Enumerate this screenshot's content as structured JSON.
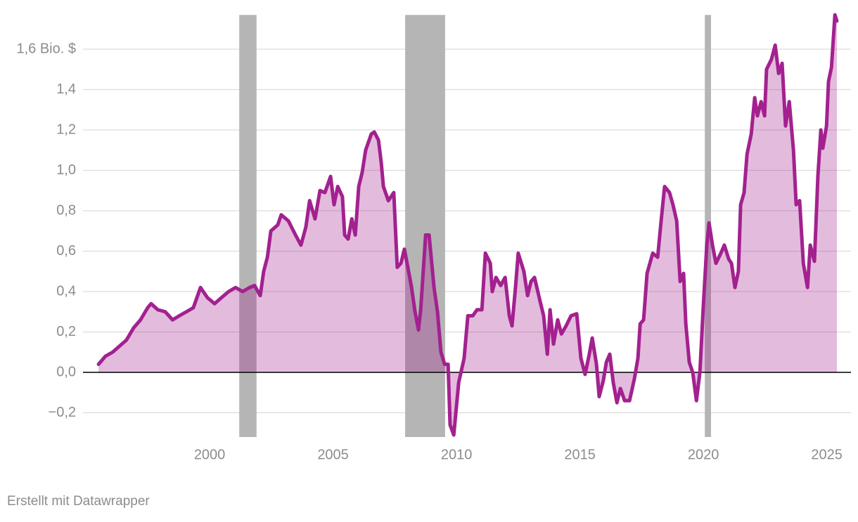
{
  "chart_data": {
    "type": "area",
    "footer": "Erstellt mit Datawrapper",
    "line_color": "#a3218f",
    "fill_color": "#a3218f",
    "shade_color": "#b5b5b5",
    "shaded_periods": [
      [
        2001.2,
        2001.9
      ],
      [
        2007.92,
        2009.54
      ],
      [
        2020.06,
        2020.31
      ]
    ],
    "xlim": [
      1994.87,
      2025.98
    ],
    "xticks": [
      2000,
      2005,
      2010,
      2015,
      2020,
      2025
    ],
    "ylim": [
      -0.32,
      1.78
    ],
    "yticks": [
      {
        "value": -0.2,
        "label": "−0,2"
      },
      {
        "value": 0,
        "label": "0,0"
      },
      {
        "value": 0.2,
        "label": "0,2"
      },
      {
        "value": 0.4,
        "label": "0,4"
      },
      {
        "value": 0.6,
        "label": "0,6"
      },
      {
        "value": 0.8,
        "label": "0,8"
      },
      {
        "value": 1.0,
        "label": "1,0"
      },
      {
        "value": 1.2,
        "label": "1,2"
      },
      {
        "value": 1.4,
        "label": "1,4"
      },
      {
        "value": 1.6,
        "label": "1,6 Bio. $"
      }
    ],
    "grid": true,
    "x": [
      1995.5,
      1995.78,
      1996.07,
      1996.35,
      1996.63,
      1996.92,
      1997.2,
      1997.49,
      1997.63,
      1997.9,
      1998.2,
      1998.5,
      1998.77,
      1999.06,
      1999.34,
      1999.63,
      1999.91,
      2000.2,
      2000.48,
      2000.77,
      2001.05,
      2001.34,
      2001.62,
      2001.82,
      2002.05,
      2002.19,
      2002.34,
      2002.48,
      2002.76,
      2002.9,
      2003.19,
      2003.48,
      2003.7,
      2003.9,
      2004.05,
      2004.27,
      2004.47,
      2004.67,
      2004.9,
      2005.04,
      2005.19,
      2005.38,
      2005.47,
      2005.61,
      2005.76,
      2005.9,
      2006.04,
      2006.18,
      2006.32,
      2006.55,
      2006.67,
      2006.84,
      2006.95,
      2007.04,
      2007.24,
      2007.46,
      2007.6,
      2007.75,
      2007.89,
      2008.03,
      2008.18,
      2008.32,
      2008.46,
      2008.55,
      2008.75,
      2008.89,
      2009.09,
      2009.23,
      2009.37,
      2009.52,
      2009.66,
      2009.74,
      2009.89,
      2010.09,
      2010.31,
      2010.46,
      2010.66,
      2010.83,
      2011.03,
      2011.17,
      2011.37,
      2011.45,
      2011.6,
      2011.79,
      2011.97,
      2012.14,
      2012.25,
      2012.39,
      2012.5,
      2012.73,
      2012.88,
      2013.02,
      2013.16,
      2013.39,
      2013.53,
      2013.68,
      2013.79,
      2013.93,
      2014.1,
      2014.25,
      2014.44,
      2014.64,
      2014.87,
      2015.04,
      2015.21,
      2015.38,
      2015.5,
      2015.67,
      2015.78,
      2015.95,
      2016.07,
      2016.21,
      2016.35,
      2016.5,
      2016.64,
      2016.81,
      2017.01,
      2017.21,
      2017.35,
      2017.44,
      2017.58,
      2017.72,
      2017.95,
      2018.15,
      2018.29,
      2018.43,
      2018.63,
      2018.77,
      2018.92,
      2019.06,
      2019.2,
      2019.29,
      2019.43,
      2019.57,
      2019.72,
      2019.86,
      2020.0,
      2020.14,
      2020.23,
      2020.37,
      2020.51,
      2020.71,
      2020.85,
      2021.03,
      2021.14,
      2021.28,
      2021.42,
      2021.51,
      2021.65,
      2021.77,
      2021.94,
      2022.08,
      2022.19,
      2022.34,
      2022.48,
      2022.56,
      2022.76,
      2022.91,
      2023.05,
      2023.19,
      2023.33,
      2023.48,
      2023.65,
      2023.76,
      2023.9,
      2024.05,
      2024.22,
      2024.33,
      2024.5,
      2024.64,
      2024.76,
      2024.84,
      2024.99,
      2025.07,
      2025.19,
      2025.33,
      2025.41
    ],
    "values": [
      0.04,
      0.08,
      0.1,
      0.13,
      0.16,
      0.22,
      0.26,
      0.32,
      0.34,
      0.31,
      0.3,
      0.26,
      0.28,
      0.3,
      0.32,
      0.42,
      0.37,
      0.34,
      0.37,
      0.4,
      0.42,
      0.4,
      0.42,
      0.43,
      0.38,
      0.5,
      0.57,
      0.7,
      0.73,
      0.78,
      0.75,
      0.68,
      0.63,
      0.72,
      0.85,
      0.76,
      0.9,
      0.89,
      0.97,
      0.83,
      0.92,
      0.87,
      0.68,
      0.66,
      0.76,
      0.68,
      0.92,
      0.99,
      1.1,
      1.18,
      1.19,
      1.15,
      1.04,
      0.92,
      0.85,
      0.89,
      0.52,
      0.54,
      0.61,
      0.52,
      0.42,
      0.3,
      0.21,
      0.31,
      0.68,
      0.68,
      0.42,
      0.3,
      0.1,
      0.04,
      0.04,
      -0.26,
      -0.31,
      -0.05,
      0.07,
      0.28,
      0.28,
      0.31,
      0.31,
      0.59,
      0.54,
      0.4,
      0.47,
      0.43,
      0.47,
      0.28,
      0.23,
      0.42,
      0.59,
      0.5,
      0.38,
      0.45,
      0.47,
      0.35,
      0.28,
      0.09,
      0.31,
      0.14,
      0.26,
      0.19,
      0.23,
      0.28,
      0.29,
      0.07,
      -0.01,
      0.09,
      0.17,
      0.04,
      -0.12,
      -0.04,
      0.05,
      0.09,
      -0.05,
      -0.15,
      -0.08,
      -0.14,
      -0.14,
      -0.03,
      0.07,
      0.24,
      0.26,
      0.49,
      0.59,
      0.57,
      0.75,
      0.92,
      0.89,
      0.83,
      0.75,
      0.45,
      0.49,
      0.24,
      0.05,
      0.0,
      -0.14,
      0.0,
      0.33,
      0.63,
      0.74,
      0.63,
      0.54,
      0.59,
      0.63,
      0.56,
      0.54,
      0.42,
      0.5,
      0.83,
      0.89,
      1.08,
      1.18,
      1.36,
      1.27,
      1.34,
      1.27,
      1.5,
      1.55,
      1.62,
      1.48,
      1.53,
      1.22,
      1.34,
      1.1,
      0.83,
      0.85,
      0.54,
      0.42,
      0.63,
      0.55,
      0.97,
      1.2,
      1.11,
      1.22,
      1.44,
      1.51,
      1.77,
      1.74
    ]
  }
}
